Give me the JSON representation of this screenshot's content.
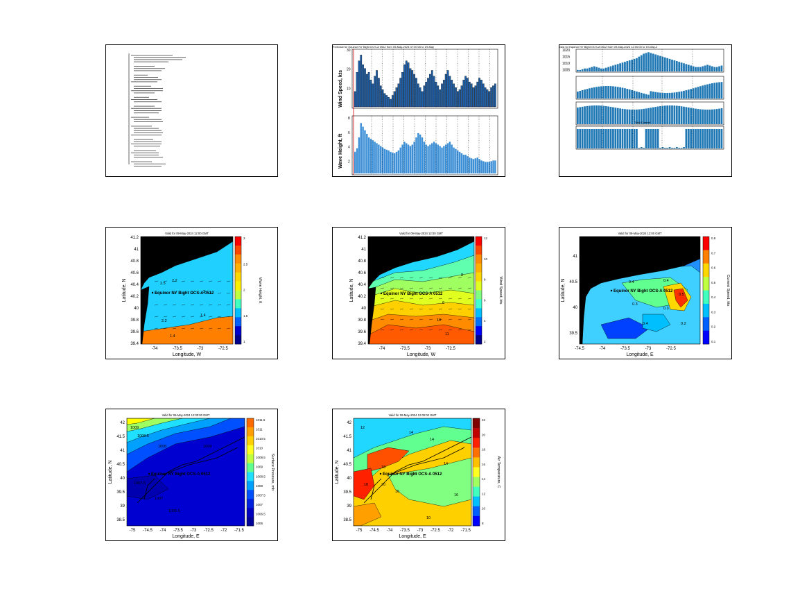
{
  "panels": {
    "ts_wind_wave": {
      "title": "Forecast for Equinor NY Bight OCS-A 0512 from 09-May-2024 07:00:00 to 19-May",
      "wind": {
        "ylabel": "Wind Speed, kts",
        "yticks": [
          "30",
          "20",
          "10"
        ]
      },
      "wave": {
        "ylabel": "Wave Height, ft",
        "yticks": [
          "8",
          "6",
          "4",
          "2"
        ]
      }
    },
    "ts_multi": {
      "title": "cast for Equinor NY Bight OCS-A 0512 from 09-May-2024 12:00:00 to 19-May-2",
      "pressure": {
        "yticks": [
          "1020",
          "1015",
          "1010",
          "1005"
        ]
      },
      "inset_label": "Tidal Current"
    },
    "map_wave": {
      "title": "Valid for 09-May-2024 12:00 GMT",
      "site_label": "Equinor NY Bight OCS-A 0512",
      "xlabel": "Longitude, W",
      "ylabel": "Latitude, N",
      "xticks": [
        "-74",
        "-73.5",
        "-73",
        "-72.5"
      ],
      "yticks": [
        "41.2",
        "41",
        "40.8",
        "40.6",
        "40.4",
        "40.2",
        "40",
        "39.8",
        "39.6",
        "39.4"
      ],
      "cbar_label": "Wave Height, ft",
      "cbar_ticks": [
        "3",
        "2.5",
        "2",
        "1.5",
        "1"
      ],
      "contour_labels": [
        "2.5",
        "2.2",
        "2.2",
        "1.4",
        "2",
        "1.4"
      ]
    },
    "map_wind": {
      "title": "Valid for 09-May-2024 12:00 GMT",
      "site_label": "Equinor NY Bight OCS-A 0512",
      "xlabel": "Longitude, W",
      "ylabel": "Latitude, N",
      "xticks": [
        "-74",
        "-73.5",
        "-73",
        "-72.5"
      ],
      "yticks": [
        "41.2",
        "41",
        "40.8",
        "40.6",
        "40.4",
        "40.2",
        "40",
        "39.8",
        "39.6",
        "39.4"
      ],
      "cbar_label": "Wind Speed, kts",
      "cbar_ticks": [
        "12",
        "10",
        "8",
        "6",
        "4",
        "2"
      ],
      "contour_labels": [
        "8",
        "6",
        "10",
        "11"
      ]
    },
    "map_current": {
      "title": "Valid for 09-May-2024 12:00 GMT",
      "site_label": "Equinor NY Bight OCS-A 0512",
      "xlabel": "Longitude, E",
      "ylabel": "Latitude, N",
      "xticks": [
        "-74.5",
        "-74",
        "-73.5",
        "-73",
        "-72.5"
      ],
      "yticks": [
        "41",
        "40.5",
        "40",
        "39.5"
      ],
      "cbar_label": "Current Speed, kts",
      "cbar_ticks": [
        "0.8",
        "0.7",
        "0.6",
        "0.5",
        "0.4",
        "0.3",
        "0.2",
        "0.1"
      ],
      "contour_labels": [
        "0.4",
        "0.4",
        "0.3",
        "0.3",
        "0.5",
        "0.4",
        "0.2"
      ]
    },
    "map_pressure": {
      "title": "Valid for 09-May-2024 12:00:00 GMT",
      "site_label": "Equinor NY Bight OCS-A 0512",
      "xlabel": "Longitude, E",
      "ylabel": "Latitude, N",
      "xticks": [
        "-75",
        "-74.5",
        "-74",
        "-73.5",
        "-73",
        "-72.5",
        "-72",
        "-71.5"
      ],
      "yticks": [
        "42",
        "41.5",
        "41",
        "40.5",
        "40",
        "39.5",
        "39",
        "38.5"
      ],
      "cbar_label": "Surface Pressure, mb",
      "cbar_ticks": [
        "1011.5",
        "1011",
        "1010.5",
        "1010",
        "1009.5",
        "1009",
        "1008.5",
        "1008",
        "1007.5",
        "1007",
        "1006.5",
        "1006"
      ],
      "contour_labels": [
        "1009",
        "1008.5",
        "1008",
        "1009",
        "1007.5",
        "1007",
        "1006.5"
      ]
    },
    "map_temp": {
      "title": "Valid for 09-May-2024 12:00:00 GMT",
      "site_label": "Equinor NY Bight OCS-A 0512",
      "xlabel": "Longitude, E",
      "ylabel": "Latitude, N",
      "xticks": [
        "-75",
        "-74.5",
        "-74",
        "-73.5",
        "-73",
        "-72.5",
        "-72",
        "-71.5"
      ],
      "yticks": [
        "42",
        "41.5",
        "41",
        "40.5",
        "40",
        "39.5",
        "39",
        "38.5"
      ],
      "cbar_label": "Air Temperature, C",
      "cbar_ticks": [
        "22",
        "20",
        "18",
        "16",
        "14",
        "12",
        "10",
        "8"
      ],
      "contour_labels": [
        "12",
        "14",
        "14",
        "16",
        "18",
        "14",
        "16",
        "20",
        "16",
        "10",
        "18"
      ]
    }
  },
  "chart_data": [
    {
      "type": "bar",
      "title": "Forecast for Equinor NY Bight OCS-A 0512 from 09-May-2024 07:00:00 to 19-May",
      "ylabel": "Wind Speed, kts",
      "ylim": [
        0,
        30
      ],
      "values": [
        8,
        18,
        24,
        27,
        22,
        20,
        17,
        18,
        14,
        12,
        16,
        19,
        15,
        11,
        9,
        7,
        6,
        5,
        4,
        6,
        8,
        10,
        12,
        15,
        18,
        22,
        24,
        23,
        20,
        19,
        17,
        15,
        12,
        10,
        8,
        11,
        13,
        15,
        17,
        19,
        16,
        13,
        11,
        9,
        12,
        14,
        17,
        19,
        16,
        14,
        12,
        10,
        8,
        9,
        11,
        14,
        16,
        15,
        13,
        12,
        10,
        11,
        13,
        15,
        14,
        12,
        10,
        9,
        8,
        10,
        11,
        12
      ]
    },
    {
      "type": "bar",
      "ylabel": "Wave Height, ft",
      "ylim": [
        0,
        8
      ],
      "values": [
        3,
        3.5,
        5,
        7,
        6.5,
        6,
        5.5,
        5,
        4.8,
        4.6,
        4.4,
        4.2,
        4,
        3.8,
        3.6,
        3.4,
        3.3,
        3.2,
        3,
        2.9,
        2.8,
        3,
        3.2,
        3.6,
        4,
        4.4,
        4.2,
        4,
        3.8,
        4,
        4.4,
        5,
        5.6,
        5.4,
        5,
        4.4,
        4,
        3.8,
        4,
        4.2,
        4.4,
        4.2,
        4,
        3.8,
        3.6,
        3.8,
        4,
        4.2,
        4.4,
        4,
        3.6,
        3.4,
        3.2,
        3,
        2.8,
        2.6,
        2.6,
        2.4,
        2.2,
        2.1,
        2,
        2.1,
        2.2,
        2,
        1.8,
        1.7,
        1.6,
        1.6,
        1.6,
        1.7,
        1.8,
        1.8
      ]
    },
    {
      "type": "bar",
      "title": "cast for Equinor NY Bight OCS-A 0512 from 09-May-2024 12:00:00 to 19-May-2",
      "ylim": [
        1005,
        1020
      ],
      "values": [
        1006,
        1006,
        1006.5,
        1007,
        1007,
        1007.5,
        1008,
        1008.5,
        1008,
        1007.5,
        1007,
        1007,
        1007.5,
        1008,
        1008.5,
        1009,
        1009.5,
        1010,
        1010.5,
        1011,
        1011.5,
        1012,
        1012.5,
        1013,
        1013.5,
        1014,
        1015,
        1016,
        1017,
        1017.5,
        1018,
        1017.5,
        1017,
        1016.5,
        1016,
        1015.5,
        1015,
        1014.5,
        1014,
        1013.5,
        1013,
        1012.5,
        1012,
        1011.5,
        1011,
        1010.5,
        1010,
        1009.5,
        1009,
        1008.5,
        1008,
        1008,
        1008,
        1008.5,
        1009,
        1009.5,
        1009,
        1008.5,
        1008,
        1008,
        1008.5,
        1009
      ]
    }
  ]
}
